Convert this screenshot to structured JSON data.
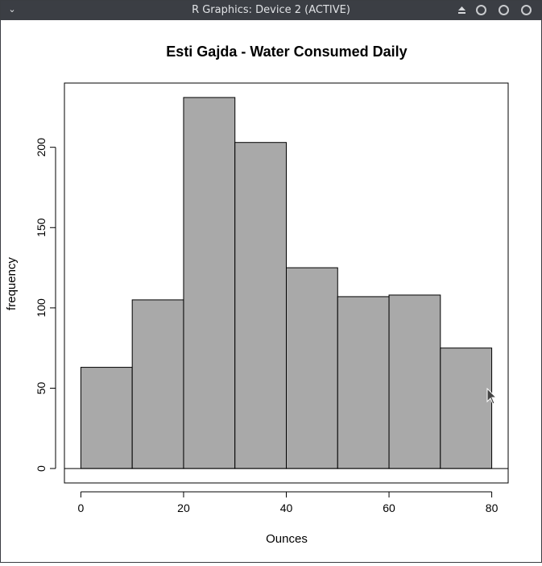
{
  "window": {
    "title": "R Graphics: Device 2 (ACTIVE)",
    "menu_icon": "chevron-down-icon",
    "buttons": [
      "eject-icon",
      "minimize-icon",
      "maximize-icon",
      "close-icon"
    ]
  },
  "chart_data": {
    "type": "bar",
    "title": "Esti Gajda - Water Consumed Daily",
    "xlabel": "Ounces",
    "ylabel": "frequency",
    "bins": [
      [
        0,
        10
      ],
      [
        10,
        20
      ],
      [
        20,
        30
      ],
      [
        30,
        40
      ],
      [
        40,
        50
      ],
      [
        50,
        60
      ],
      [
        60,
        70
      ],
      [
        70,
        80
      ]
    ],
    "values": [
      63,
      105,
      231,
      203,
      125,
      107,
      108,
      75
    ],
    "xlim": [
      -3.2,
      83.2
    ],
    "ylim": [
      -9,
      240
    ],
    "xticks": [
      0,
      20,
      40,
      60,
      80
    ],
    "yticks": [
      0,
      50,
      100,
      150,
      200
    ],
    "bar_color": "#a9a9a9",
    "grid": false,
    "legend": "none"
  }
}
